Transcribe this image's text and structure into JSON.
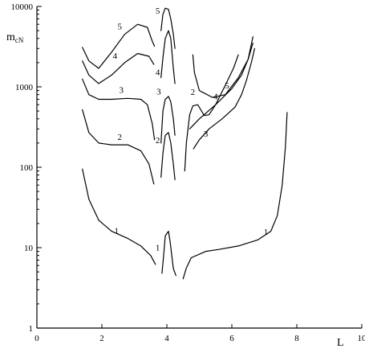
{
  "chart_data": {
    "type": "line",
    "y_scale": "log",
    "xlim": [
      0,
      10
    ],
    "ylim": [
      1,
      10000
    ],
    "grid": false,
    "xlabel": "L",
    "ylabel_main": "m",
    "ylabel_sub": "cN",
    "x_ticks": [
      0,
      2,
      4,
      6,
      8,
      10
    ],
    "y_ticks": [
      1,
      10,
      100,
      1000,
      10000
    ],
    "x_tick_labels": [
      "0",
      "2",
      "4",
      "6",
      "8",
      "10"
    ],
    "y_tick_labels": [
      "1",
      "10",
      "100",
      "1000",
      "10000"
    ],
    "series": [
      {
        "name": "1",
        "segments": [
          [
            [
              1.4,
              95
            ],
            [
              1.6,
              40
            ],
            [
              1.9,
              22
            ],
            [
              2.3,
              16
            ],
            [
              2.8,
              13
            ],
            [
              3.2,
              10.5
            ],
            [
              3.5,
              8
            ],
            [
              3.65,
              6.2
            ]
          ],
          [
            [
              3.85,
              4.8
            ],
            [
              3.9,
              8
            ],
            [
              3.95,
              14
            ],
            [
              4.05,
              16
            ],
            [
              4.1,
              12
            ],
            [
              4.15,
              8
            ],
            [
              4.2,
              5.5
            ],
            [
              4.28,
              4.5
            ]
          ],
          [
            [
              4.5,
              4.1
            ],
            [
              4.6,
              5.6
            ],
            [
              4.75,
              7.5
            ],
            [
              5.2,
              9
            ],
            [
              5.6,
              9.5
            ],
            [
              6.2,
              10.5
            ],
            [
              6.8,
              12.5
            ],
            [
              7.2,
              16
            ],
            [
              7.4,
              25
            ],
            [
              7.55,
              60
            ],
            [
              7.65,
              180
            ],
            [
              7.7,
              480
            ]
          ]
        ],
        "labels": [
          [
            2.45,
            15
          ],
          [
            3.72,
            9.2
          ],
          [
            7.05,
            14.5
          ]
        ]
      },
      {
        "name": "2",
        "segments": [
          [
            [
              1.4,
              520
            ],
            [
              1.6,
              270
            ],
            [
              1.9,
              200
            ],
            [
              2.3,
              190
            ],
            [
              2.8,
              190
            ],
            [
              3.2,
              160
            ],
            [
              3.45,
              110
            ],
            [
              3.6,
              62
            ]
          ],
          [
            [
              3.82,
              75
            ],
            [
              3.88,
              150
            ],
            [
              3.95,
              250
            ],
            [
              4.05,
              270
            ],
            [
              4.12,
              200
            ],
            [
              4.2,
              110
            ],
            [
              4.25,
              70
            ]
          ],
          [
            [
              4.55,
              90
            ],
            [
              4.6,
              200
            ],
            [
              4.7,
              450
            ],
            [
              4.8,
              580
            ],
            [
              4.95,
              600
            ],
            [
              5.15,
              440
            ],
            [
              5.3,
              450
            ],
            [
              5.5,
              600
            ],
            [
              5.8,
              1050
            ],
            [
              6.05,
              1700
            ],
            [
              6.2,
              2500
            ]
          ]
        ],
        "labels": [
          [
            2.55,
            220
          ],
          [
            3.72,
            200
          ],
          [
            4.8,
            790
          ]
        ]
      },
      {
        "name": "3",
        "segments": [
          [
            [
              1.4,
              1250
            ],
            [
              1.6,
              800
            ],
            [
              1.9,
              700
            ],
            [
              2.3,
              700
            ],
            [
              2.8,
              720
            ],
            [
              3.2,
              700
            ],
            [
              3.4,
              600
            ],
            [
              3.55,
              350
            ],
            [
              3.62,
              220
            ]
          ],
          [
            [
              3.82,
              200
            ],
            [
              3.88,
              500
            ],
            [
              3.95,
              700
            ],
            [
              4.05,
              760
            ],
            [
              4.12,
              650
            ],
            [
              4.2,
              400
            ],
            [
              4.25,
              250
            ]
          ],
          [
            [
              4.82,
              170
            ],
            [
              5.0,
              220
            ],
            [
              5.3,
              300
            ],
            [
              5.7,
              400
            ],
            [
              6.1,
              560
            ],
            [
              6.3,
              800
            ],
            [
              6.45,
              1200
            ],
            [
              6.6,
              2000
            ],
            [
              6.7,
              3000
            ]
          ]
        ],
        "labels": [
          [
            2.6,
            840
          ],
          [
            3.75,
            800
          ],
          [
            5.2,
            240
          ]
        ]
      },
      {
        "name": "4",
        "segments": [
          [
            [
              1.4,
              2100
            ],
            [
              1.6,
              1400
            ],
            [
              1.9,
              1100
            ],
            [
              2.3,
              1400
            ],
            [
              2.7,
              2000
            ],
            [
              3.1,
              2600
            ],
            [
              3.45,
              2400
            ],
            [
              3.6,
              1900
            ]
          ],
          [
            [
              3.82,
              1300
            ],
            [
              3.88,
              2300
            ],
            [
              3.95,
              4000
            ],
            [
              4.05,
              5000
            ],
            [
              4.12,
              4000
            ],
            [
              4.2,
              1700
            ],
            [
              4.25,
              1100
            ]
          ],
          [
            [
              4.7,
              300
            ],
            [
              5.0,
              400
            ],
            [
              5.5,
              600
            ],
            [
              6.0,
              950
            ],
            [
              6.3,
              1400
            ],
            [
              6.5,
              2200
            ],
            [
              6.65,
              3500
            ]
          ]
        ],
        "labels": [
          [
            2.4,
            2250
          ],
          [
            3.72,
            1400
          ],
          [
            5.5,
            700
          ]
        ]
      },
      {
        "name": "5",
        "segments": [
          [
            [
              1.4,
              3100
            ],
            [
              1.6,
              2100
            ],
            [
              1.9,
              1700
            ],
            [
              2.3,
              2700
            ],
            [
              2.7,
              4500
            ],
            [
              3.1,
              6000
            ],
            [
              3.4,
              5500
            ],
            [
              3.55,
              3700
            ],
            [
              3.62,
              3200
            ]
          ],
          [
            [
              3.82,
              5000
            ],
            [
              3.88,
              8000
            ],
            [
              3.95,
              9500
            ],
            [
              4.05,
              9200
            ],
            [
              4.12,
              7000
            ],
            [
              4.2,
              4500
            ],
            [
              4.25,
              3000
            ]
          ],
          [
            [
              4.8,
              2500
            ],
            [
              4.85,
              1500
            ],
            [
              5.0,
              900
            ],
            [
              5.4,
              740
            ],
            [
              5.8,
              800
            ],
            [
              6.2,
              1300
            ],
            [
              6.5,
              2200
            ],
            [
              6.65,
              4200
            ]
          ]
        ],
        "labels": [
          [
            2.55,
            5200
          ],
          [
            3.72,
            8100
          ],
          [
            5.85,
            950
          ]
        ]
      }
    ]
  }
}
